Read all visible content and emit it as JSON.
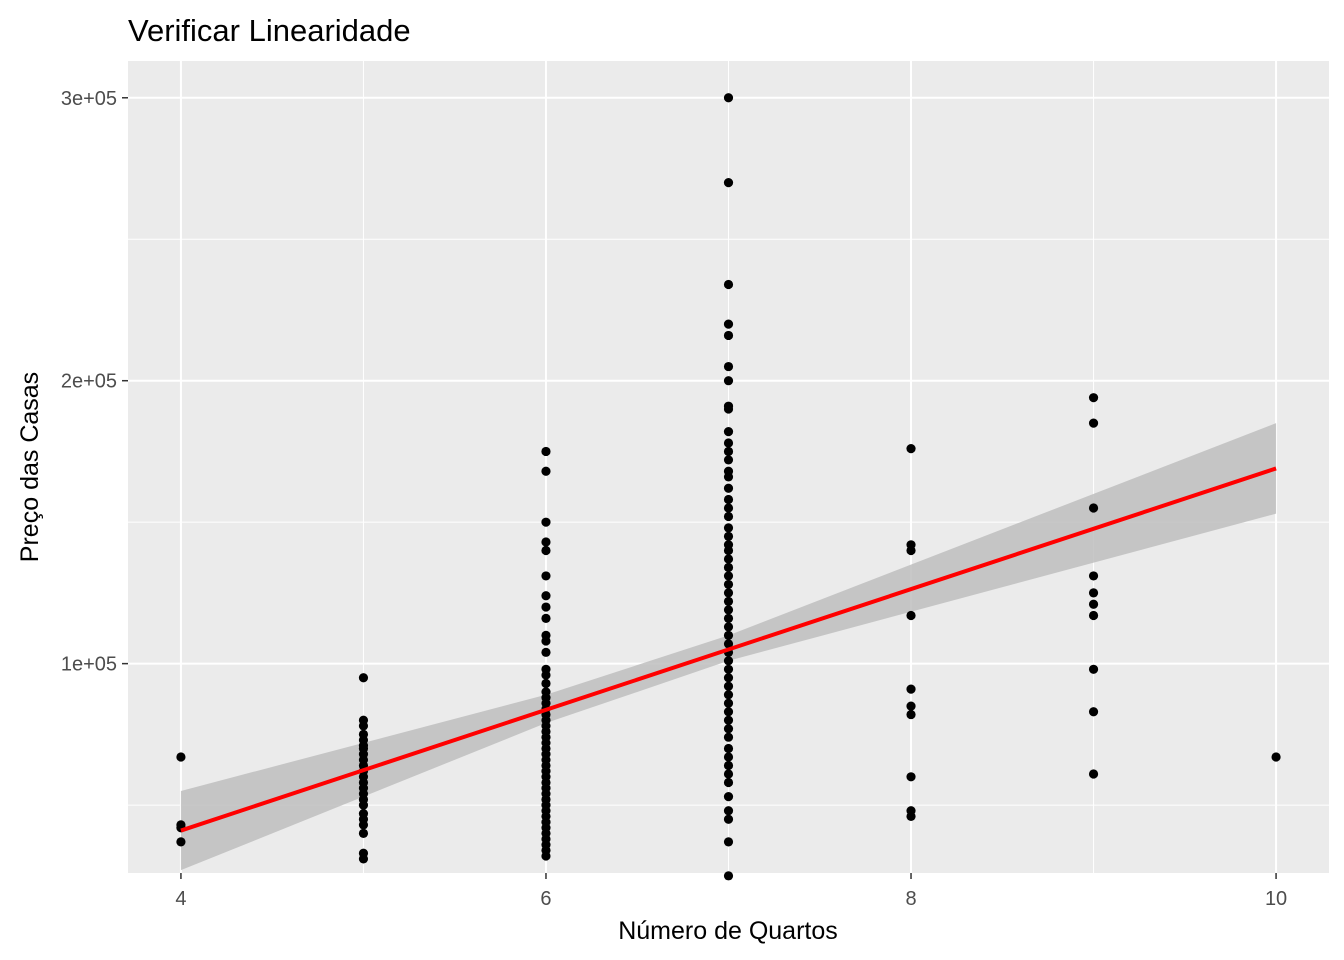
{
  "chart_data": {
    "type": "scatter",
    "title": "Verificar Linearidade",
    "xlabel": "Número de Quartos",
    "ylabel": "Preço das Casas",
    "xlim": [
      3.71,
      10.29
    ],
    "ylim": [
      26000,
      313000
    ],
    "x_ticks": [
      4,
      6,
      8,
      10
    ],
    "x_tick_labels": [
      "4",
      "6",
      "8",
      "10"
    ],
    "y_ticks": [
      100000,
      200000,
      300000
    ],
    "y_tick_labels": [
      "1e+05",
      "2e+05",
      "3e+05"
    ],
    "grid": true,
    "legend": "none",
    "colors": {
      "panel": "#ebebeb",
      "grid": "#ffffff",
      "points": "#000000",
      "fit_line": "#ff0000",
      "confidence_band": "#bebebe"
    },
    "points": [
      [
        4,
        67000
      ],
      [
        4,
        43000
      ],
      [
        4,
        42000
      ],
      [
        4,
        37000
      ],
      [
        5,
        95000
      ],
      [
        5,
        80000
      ],
      [
        5,
        78000
      ],
      [
        5,
        75000
      ],
      [
        5,
        73000
      ],
      [
        5,
        71000
      ],
      [
        5,
        70000
      ],
      [
        5,
        68000
      ],
      [
        5,
        66000
      ],
      [
        5,
        64000
      ],
      [
        5,
        62000
      ],
      [
        5,
        60000
      ],
      [
        5,
        58000
      ],
      [
        5,
        56000
      ],
      [
        5,
        54000
      ],
      [
        5,
        52000
      ],
      [
        5,
        50000
      ],
      [
        5,
        47000
      ],
      [
        5,
        45000
      ],
      [
        5,
        43000
      ],
      [
        5,
        40000
      ],
      [
        5,
        33000
      ],
      [
        5,
        31000
      ],
      [
        6,
        175000
      ],
      [
        6,
        168000
      ],
      [
        6,
        150000
      ],
      [
        6,
        143000
      ],
      [
        6,
        140000
      ],
      [
        6,
        131000
      ],
      [
        6,
        124000
      ],
      [
        6,
        120000
      ],
      [
        6,
        116000
      ],
      [
        6,
        110000
      ],
      [
        6,
        108000
      ],
      [
        6,
        104000
      ],
      [
        6,
        98000
      ],
      [
        6,
        96000
      ],
      [
        6,
        93000
      ],
      [
        6,
        90000
      ],
      [
        6,
        88000
      ],
      [
        6,
        86000
      ],
      [
        6,
        84000
      ],
      [
        6,
        82000
      ],
      [
        6,
        80000
      ],
      [
        6,
        78000
      ],
      [
        6,
        76000
      ],
      [
        6,
        74000
      ],
      [
        6,
        72000
      ],
      [
        6,
        70000
      ],
      [
        6,
        68000
      ],
      [
        6,
        66000
      ],
      [
        6,
        64000
      ],
      [
        6,
        62000
      ],
      [
        6,
        60000
      ],
      [
        6,
        58000
      ],
      [
        6,
        56000
      ],
      [
        6,
        54000
      ],
      [
        6,
        52000
      ],
      [
        6,
        50000
      ],
      [
        6,
        48000
      ],
      [
        6,
        46000
      ],
      [
        6,
        44000
      ],
      [
        6,
        42000
      ],
      [
        6,
        40000
      ],
      [
        6,
        38000
      ],
      [
        6,
        36000
      ],
      [
        6,
        34000
      ],
      [
        6,
        32000
      ],
      [
        7,
        300000
      ],
      [
        7,
        270000
      ],
      [
        7,
        234000
      ],
      [
        7,
        220000
      ],
      [
        7,
        216000
      ],
      [
        7,
        205000
      ],
      [
        7,
        200000
      ],
      [
        7,
        191000
      ],
      [
        7,
        190000
      ],
      [
        7,
        182000
      ],
      [
        7,
        178000
      ],
      [
        7,
        175000
      ],
      [
        7,
        172000
      ],
      [
        7,
        168000
      ],
      [
        7,
        166000
      ],
      [
        7,
        162000
      ],
      [
        7,
        158000
      ],
      [
        7,
        155000
      ],
      [
        7,
        152000
      ],
      [
        7,
        148000
      ],
      [
        7,
        145000
      ],
      [
        7,
        142000
      ],
      [
        7,
        140000
      ],
      [
        7,
        137000
      ],
      [
        7,
        134000
      ],
      [
        7,
        131000
      ],
      [
        7,
        128000
      ],
      [
        7,
        125000
      ],
      [
        7,
        122000
      ],
      [
        7,
        119000
      ],
      [
        7,
        116000
      ],
      [
        7,
        113000
      ],
      [
        7,
        110000
      ],
      [
        7,
        107000
      ],
      [
        7,
        104000
      ],
      [
        7,
        101000
      ],
      [
        7,
        98000
      ],
      [
        7,
        95000
      ],
      [
        7,
        92000
      ],
      [
        7,
        89000
      ],
      [
        7,
        86000
      ],
      [
        7,
        83000
      ],
      [
        7,
        80000
      ],
      [
        7,
        77000
      ],
      [
        7,
        74000
      ],
      [
        7,
        70000
      ],
      [
        7,
        67000
      ],
      [
        7,
        64000
      ],
      [
        7,
        61000
      ],
      [
        7,
        58000
      ],
      [
        7,
        53000
      ],
      [
        7,
        48000
      ],
      [
        7,
        45000
      ],
      [
        7,
        37000
      ],
      [
        7,
        25000
      ],
      [
        8,
        176000
      ],
      [
        8,
        142000
      ],
      [
        8,
        140000
      ],
      [
        8,
        117000
      ],
      [
        8,
        91000
      ],
      [
        8,
        85000
      ],
      [
        8,
        82000
      ],
      [
        8,
        60000
      ],
      [
        8,
        48000
      ],
      [
        8,
        46000
      ],
      [
        9,
        194000
      ],
      [
        9,
        185000
      ],
      [
        9,
        155000
      ],
      [
        9,
        131000
      ],
      [
        9,
        125000
      ],
      [
        9,
        121000
      ],
      [
        9,
        117000
      ],
      [
        9,
        98000
      ],
      [
        9,
        83000
      ],
      [
        9,
        61000
      ],
      [
        10,
        67000
      ]
    ],
    "fit_line": {
      "x": [
        4,
        10
      ],
      "y": [
        41000,
        169000
      ]
    },
    "confidence_band": {
      "x": [
        4,
        6,
        7,
        10
      ],
      "lower": [
        27000,
        79000,
        101000,
        153000
      ],
      "upper": [
        55000,
        89000,
        110000,
        185000
      ]
    }
  }
}
